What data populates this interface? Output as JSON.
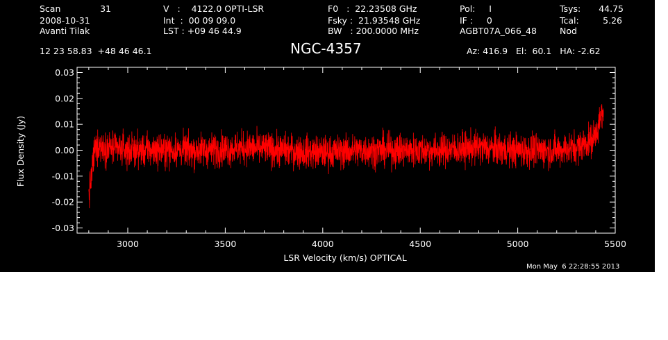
{
  "header": {
    "col1": {
      "scan_label": "Scan",
      "scan_value": "31",
      "date": "2008-10-31",
      "observer": "Avanti Tilak"
    },
    "col2": {
      "v_line": "V   :    4122.0 OPTI-LSR",
      "int_line": "Int  :  00 09 09.0",
      "lst_line": "LST : +09 46 44.9"
    },
    "col3": {
      "f0_line": "F0   :  22.23508 GHz",
      "fsky_line": "Fsky :  21.93548 GHz",
      "bw_line": "BW   : 200.0000 MHz"
    },
    "col4": {
      "pol_line": "Pol:     I",
      "if_line": "IF :     0",
      "project": "AGBT07A_066_48"
    },
    "col5": {
      "tsys_label": "Tsys:",
      "tsys_value": "44.75",
      "tcal_label": "Tcal:",
      "tcal_value": "5.26",
      "mode": "Nod"
    },
    "coords": "12 23 58.83  +48 46 46.1",
    "azelha": "Az: 416.9   El:  60.1   HA: -2.62",
    "timestamp": "Mon May  6 22:28:55 2013"
  },
  "colors": {
    "background": "#000000",
    "axes": "#ffffff",
    "trace": "#ff0000"
  },
  "chart_data": {
    "type": "line",
    "title": "NGC-4357",
    "xlabel": "LSR Velocity (km/s) OPTICAL",
    "ylabel": "Flux Density (Jy)",
    "xlim": [
      2740,
      5500
    ],
    "ylim": [
      -0.032,
      0.032
    ],
    "xticks": [
      3000,
      3500,
      4000,
      4500,
      5000,
      5500
    ],
    "xtick_labels": [
      "3000",
      "3500",
      "4000",
      "4500",
      "5000",
      "5500"
    ],
    "yticks": [
      -0.03,
      -0.02,
      -0.01,
      0.0,
      0.01,
      0.02,
      0.03
    ],
    "ytick_labels": [
      "-0.03",
      "-0.02",
      "-0.01",
      "0.00",
      "0.01",
      "0.02",
      "0.03"
    ],
    "series": [
      {
        "color": "#ff0000",
        "x": [
          2800,
          2810,
          2820,
          2830,
          2850,
          2900,
          3000,
          3200,
          3400,
          3600,
          3800,
          4000,
          4200,
          4400,
          4600,
          4800,
          5000,
          5200,
          5300,
          5380,
          5400,
          5420,
          5440
        ],
        "y": [
          -0.018,
          -0.012,
          -0.006,
          0.0,
          0.002,
          0.001,
          0.0,
          0.0,
          0.0,
          0.001,
          0.0,
          -0.001,
          0.0,
          0.0,
          0.0,
          0.001,
          0.0,
          0.0,
          0.001,
          0.004,
          0.007,
          0.011,
          0.014
        ],
        "noise_rms": 0.0045,
        "noise_peak": 0.014
      }
    ]
  }
}
